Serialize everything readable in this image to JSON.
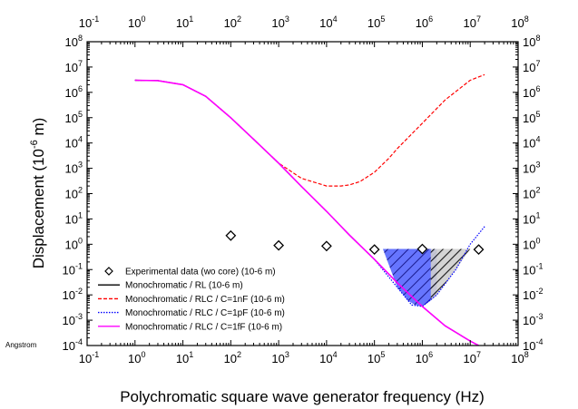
{
  "chart_data": {
    "type": "line",
    "xlabel": "Polychromatic square wave generator frequency (Hz)",
    "ylabel": "Displacement (10",
    "ylabel_exp": "-6",
    "ylabel_tail": " m)",
    "x_scale": "log",
    "y_scale": "log",
    "xlim": [
      0.1,
      100000000
    ],
    "ylim": [
      0.0001,
      100000000
    ],
    "x_tick_exponents": [
      -1,
      0,
      1,
      2,
      3,
      4,
      5,
      6,
      7,
      8
    ],
    "y_tick_exponents": [
      -4,
      -3,
      -2,
      -1,
      0,
      1,
      2,
      3,
      4,
      5,
      6,
      7,
      8
    ],
    "tick_base": "10",
    "annotation": "Angstrom",
    "legend_position": "bottom-left",
    "series": [
      {
        "name": "Experimental data (wo core) (10-6 m)",
        "style": "markers",
        "marker": "diamond",
        "color": "#000000",
        "x": [
          100,
          1000,
          10000,
          100000,
          1000000,
          15000000
        ],
        "y": [
          2.2,
          0.9,
          0.85,
          0.62,
          0.65,
          0.62
        ]
      },
      {
        "name": "Monochromatic / RL (10-6 m)",
        "style": "solid",
        "color": "#000000",
        "x": [
          1,
          3,
          10,
          30,
          100,
          300,
          1000,
          3000,
          10000,
          30000,
          100000,
          300000,
          1000000,
          3000000,
          10000000,
          15000000
        ],
        "y": [
          3000000,
          2900000,
          2000000,
          700000,
          100000,
          14000,
          1600,
          190,
          20,
          2.3,
          0.25,
          0.03,
          0.0035,
          0.0006,
          0.00015,
          0.0001
        ]
      },
      {
        "name": "Monochromatic / RLC / C=1nF (10-6 m)",
        "style": "dashed",
        "color": "#ff0000",
        "x": [
          1,
          3,
          10,
          30,
          100,
          300,
          1000,
          3000,
          10000,
          20000,
          30000,
          50000,
          100000,
          200000,
          300000,
          1000000,
          3000000,
          10000000,
          20000000
        ],
        "y": [
          3000000,
          2900000,
          2000000,
          700000,
          100000,
          14000,
          1600,
          400,
          200,
          200,
          220,
          300,
          700,
          2500,
          6000,
          60000,
          500000,
          3000000,
          5000000
        ]
      },
      {
        "name": "Monochromatic / RLC / C=1pF (10-6 m)",
        "style": "dotted",
        "color": "#0000ff",
        "x": [
          1,
          3,
          10,
          30,
          100,
          300,
          1000,
          3000,
          10000,
          30000,
          100000,
          300000,
          600000,
          1000000,
          2000000,
          5000000,
          10000000,
          20000000
        ],
        "y": [
          3000000,
          2900000,
          2000000,
          700000,
          100000,
          14000,
          1600,
          190,
          20,
          2.3,
          0.25,
          0.02,
          0.004,
          0.0035,
          0.01,
          0.1,
          1,
          5
        ]
      },
      {
        "name": "Monochromatic / RLC / C=1fF (10-6 m)",
        "style": "solid",
        "color": "#ff00ff",
        "x": [
          1,
          3,
          10,
          30,
          100,
          300,
          1000,
          3000,
          10000,
          30000,
          100000,
          300000,
          1000000,
          3000000,
          10000000,
          15000000
        ],
        "y": [
          3000000,
          2900000,
          2000000,
          700000,
          100000,
          14000,
          1600,
          190,
          20,
          2.3,
          0.25,
          0.03,
          0.0035,
          0.0006,
          0.00015,
          0.0001
        ]
      }
    ],
    "shaded_regions": [
      {
        "fill": "#4455ff",
        "hatch": "#000080",
        "x": [
          150000,
          300000,
          500000,
          700000,
          1000000,
          1500000,
          2000000
        ],
        "y": [
          0.65,
          0.02,
          0.006,
          0.004,
          0.0035,
          0.006,
          0.01
        ]
      },
      {
        "fill": "#bbbbbb",
        "hatch": "#000000",
        "x": [
          1500000,
          2000000,
          5000000,
          10000000,
          15000000,
          20000000,
          50000000,
          100000000
        ],
        "y": [
          0.006,
          0.01,
          0.1,
          0.65,
          0.65,
          0.65,
          0.65,
          0.65
        ]
      }
    ]
  }
}
